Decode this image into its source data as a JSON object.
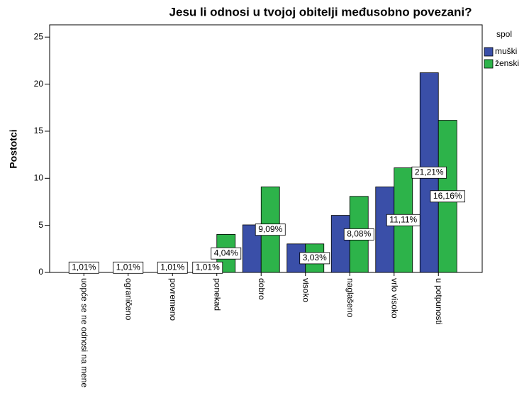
{
  "chart_data": {
    "type": "bar",
    "title": "Jesu li odnosi u tvojoj obitelji međusobno povezani?",
    "y_label": "Postotci",
    "legend_title": "spol",
    "categories": [
      "uopće se ne odnosi na mene",
      "ograničeno",
      "povremeno",
      "ponekad",
      "dobro",
      "visoko",
      "naglašeno",
      "vrlo visoko",
      "u potpunosti"
    ],
    "series": [
      {
        "name": "muški",
        "color": "#3a4fa8",
        "values": [
          1.01,
          1.01,
          1.01,
          1.01,
          5.05,
          3.03,
          6.06,
          9.09,
          21.21
        ],
        "value_labels": [
          "1,01%",
          "1,01%",
          "1,01%",
          "1,01%",
          null,
          null,
          null,
          null,
          "21,21%"
        ]
      },
      {
        "name": "ženski",
        "color": "#2db34a",
        "values": [
          null,
          null,
          null,
          4.04,
          9.09,
          3.03,
          8.08,
          11.11,
          16.16
        ],
        "value_labels": [
          null,
          null,
          null,
          "4,04%",
          "9,09%",
          "3,03%",
          "8,08%",
          "11,11%",
          "16,16%"
        ]
      }
    ],
    "ylim": [
      0,
      26.3
    ],
    "yticks": [
      0,
      5,
      10,
      15,
      20,
      25
    ],
    "legend": "right"
  }
}
